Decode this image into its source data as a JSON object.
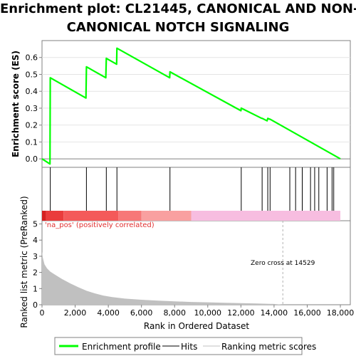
{
  "title_line1": "Enrichment plot: CL21445, CANONICAL AND NON-",
  "title_line2": "CANONICAL NOTCH SIGNALING",
  "chart_data": {
    "type": "line",
    "es_panel": {
      "ylabel": "Enrichment score (ES)",
      "ylim": [
        -0.05,
        0.7
      ],
      "yticks": [
        0.0,
        0.1,
        0.2,
        0.3,
        0.4,
        0.5,
        0.6
      ],
      "ytick_labels": [
        "0.0",
        "0.1",
        "0.2",
        "0.3",
        "0.4",
        "0.5",
        "0.6"
      ],
      "line_color": "#00ff00",
      "series": [
        {
          "name": "Enrichment profile",
          "x": [
            0,
            480,
            500,
            2650,
            2680,
            3850,
            3880,
            4500,
            4520,
            7700,
            7720,
            12000,
            12020,
            13250,
            13280,
            13580,
            13620,
            13730,
            13760,
            18000
          ],
          "y": [
            0.0,
            -0.03,
            0.48,
            0.36,
            0.545,
            0.48,
            0.595,
            0.56,
            0.655,
            0.48,
            0.515,
            0.285,
            0.3,
            0.24,
            0.24,
            0.225,
            0.24,
            0.235,
            0.235,
            0.0
          ]
        }
      ]
    },
    "hits": {
      "legend": "Hits",
      "positions": [
        500,
        2680,
        3880,
        4520,
        7720,
        12020,
        13280,
        13620,
        13760,
        14950,
        15300,
        15700,
        16200,
        16450,
        16700,
        17200,
        17500,
        17600
      ]
    },
    "ranking_bar": {
      "segments": [
        {
          "from": 0,
          "to": 250,
          "color": "#d62020"
        },
        {
          "from": 250,
          "to": 1300,
          "color": "#ea3c3c"
        },
        {
          "from": 1300,
          "to": 4600,
          "color": "#f45a5a"
        },
        {
          "from": 4600,
          "to": 6000,
          "color": "#f77878"
        },
        {
          "from": 6000,
          "to": 9000,
          "color": "#f9a0a0"
        },
        {
          "from": 9000,
          "to": 18000,
          "color": "#f7bde0"
        }
      ]
    },
    "metric_panel": {
      "ylabel": "Ranked list metric (PreRanked)",
      "xlabel": "Rank in Ordered Dataset",
      "ylim": [
        0,
        5.2
      ],
      "yticks": [
        0,
        1,
        2,
        3,
        4,
        5
      ],
      "ytick_labels": [
        "0",
        "1",
        "2",
        "3",
        "4",
        "5"
      ],
      "xlim": [
        0,
        18600
      ],
      "xticks": [
        0,
        2000,
        4000,
        6000,
        8000,
        10000,
        12000,
        14000,
        16000,
        18000
      ],
      "xtick_labels": [
        "0",
        "2,000",
        "4,000",
        "6,000",
        "8,000",
        "10,000",
        "12,000",
        "14,000",
        "16,000",
        "18,000"
      ],
      "fill_color": "#c0c0c0",
      "x": [
        0,
        50,
        150,
        300,
        500,
        800,
        1200,
        1700,
        2200,
        2700,
        3200,
        3700,
        4200,
        5000,
        6000,
        7000,
        8000,
        9000,
        10000,
        11000,
        12000,
        13000,
        14000,
        14529
      ],
      "y": [
        3.3,
        2.9,
        2.5,
        2.25,
        2.05,
        1.85,
        1.6,
        1.32,
        1.08,
        0.86,
        0.7,
        0.57,
        0.48,
        0.38,
        0.31,
        0.25,
        0.21,
        0.17,
        0.15,
        0.12,
        0.1,
        0.08,
        0.05,
        0.0
      ],
      "pos_label": "'na_pos' (positively correlated)",
      "zero_cross_label": "Zero cross at 14529",
      "zero_cross": 14529
    },
    "legend": {
      "items": [
        {
          "label": "Enrichment profile",
          "color": "#00ff00"
        },
        {
          "label": "Hits",
          "color": "#000000"
        },
        {
          "label": "Ranking metric scores",
          "color": "#c0c0c0"
        }
      ]
    }
  }
}
